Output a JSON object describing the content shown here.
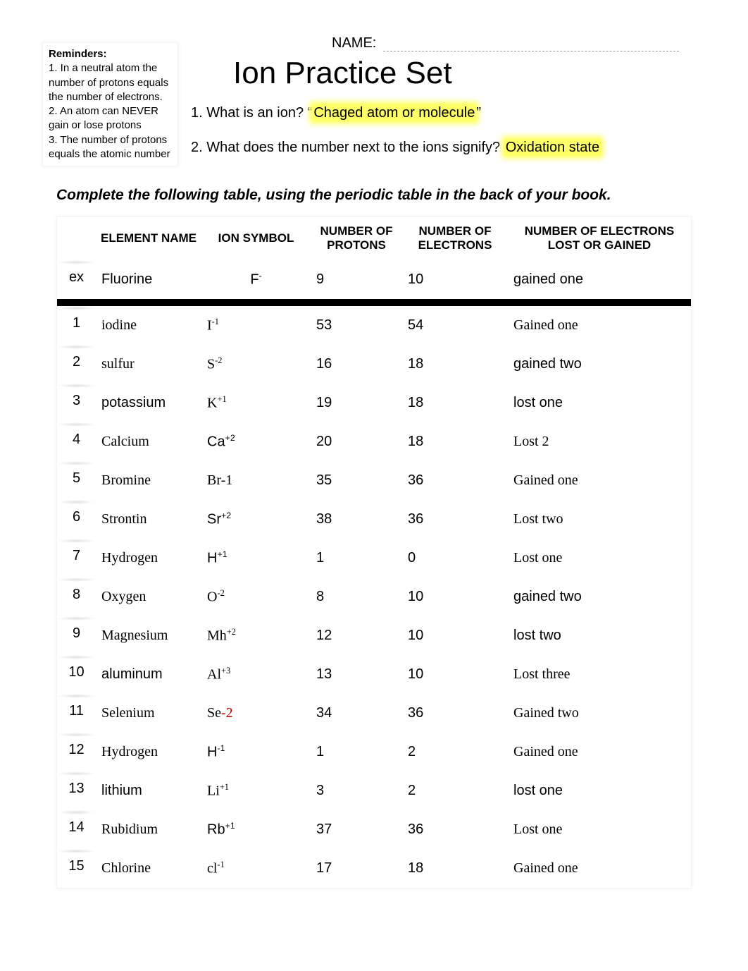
{
  "reminders": {
    "heading": "Reminders:",
    "r1": "1. In a neutral atom the number of protons equals the number of electrons.",
    "r2": "2. An atom can NEVER gain or lose protons",
    "r3": "3. The number of protons equals the atomic number"
  },
  "header": {
    "name_label": "NAME:",
    "title": "Ion Practice Set",
    "q1_label": "1.  What is an ion? ",
    "q1_quote_open": "“",
    "q1_answer": "Chaged atom or molecule",
    "q1_quote_close": "”",
    "q2_label": "2.  What does the number next to the ions signify? ",
    "q2_answer": "Oxidation state",
    "instruction": "Complete the following table, using the periodic table in the back of your book."
  },
  "columns": {
    "c0": "",
    "c1": "ELEMENT NAME",
    "c2": "ION SYMBOL",
    "c3": "NUMBER OF PROTONS",
    "c4": "NUMBER OF ELECTRONS",
    "c5": "NUMBER OF ELECTRONS LOST OR GAINED"
  },
  "rows": [
    {
      "idx": "ex",
      "name": "Fluorine",
      "name_font": "sans",
      "sym": "F",
      "sup": "-",
      "sym_font": "sans",
      "sym_shift": "center",
      "prot": "9",
      "prot_pos": "num-ctr",
      "elec": "10",
      "elec_pos": "num-ctr",
      "gain": "gained one",
      "gain_font": "sans",
      "gain_pos": "gain-ctr"
    },
    {
      "idx": "1",
      "name": "iodine",
      "name_font": "serif",
      "sym": "I",
      "sup": "-1",
      "sym_font": "serif",
      "sym_shift": "shift-left",
      "prot": "53",
      "prot_pos": "num-ctr",
      "elec": "54",
      "elec_pos": "num-ctr",
      "gain": "Gained one",
      "gain_font": "serif",
      "gain_pos": "gain-left"
    },
    {
      "idx": "2",
      "name": "sulfur",
      "name_font": "serif",
      "sym": "S",
      "sup": "-2",
      "sym_font": "serif",
      "sym_shift": "shift-left",
      "prot": "16",
      "prot_pos": "num-ctr",
      "elec": "18",
      "elec_pos": "num-left",
      "gain": "gained two",
      "gain_font": "sans",
      "gain_pos": "gain-ctr"
    },
    {
      "idx": "3",
      "name": "potassium",
      "name_font": "sans",
      "sym": "K",
      "sup": "+1",
      "sym_font": "serif",
      "sym_shift": "shift-left",
      "prot": "19",
      "prot_pos": "num-left",
      "elec": "18",
      "elec_pos": "num-left",
      "gain": "lost one",
      "gain_font": "sans",
      "gain_pos": "gain-ctr"
    },
    {
      "idx": "4",
      "name": "Calcium",
      "name_font": "serif",
      "sym": "Ca",
      "sup": "+2",
      "sym_font": "sans",
      "sym_shift": "shift-right",
      "prot": "20",
      "prot_pos": "num-left",
      "elec": "18",
      "elec_pos": "num-left",
      "gain": "Lost 2",
      "gain_font": "serif",
      "gain_pos": "gain-left"
    },
    {
      "idx": "5",
      "name": "Bromine",
      "name_font": "serif",
      "sym": "Br-1",
      "sup": "",
      "sym_font": "serif",
      "sym_shift": "shift-left",
      "prot": "35",
      "prot_pos": "num-ctr",
      "elec": "36",
      "elec_pos": "num-ctr",
      "gain": "Gained one",
      "gain_font": "serif",
      "gain_pos": "gain-left"
    },
    {
      "idx": "6",
      "name": "Strontin",
      "name_font": "serif",
      "sym": "Sr",
      "sup": "+2",
      "sym_font": "sans",
      "sym_shift": "shift-right",
      "prot": "38",
      "prot_pos": "num-left",
      "elec": "36",
      "elec_pos": "num-left",
      "gain": "Lost two",
      "gain_font": "serif",
      "gain_pos": "gain-left"
    },
    {
      "idx": "7",
      "name": "Hydrogen",
      "name_font": "serif",
      "sym": "H",
      "sup": "+1",
      "sym_font": "sans",
      "sym_shift": "shift-right",
      "prot": "1",
      "prot_pos": "num-left",
      "elec": "0",
      "elec_pos": "num-left",
      "gain": "Lost one",
      "gain_font": "serif",
      "gain_pos": "gain-left"
    },
    {
      "idx": "8",
      "name": "Oxygen",
      "name_font": "serif",
      "sym": "O",
      "sup": "-2",
      "sym_font": "serif",
      "sym_shift": "shift-left",
      "prot": "8",
      "prot_pos": "num-ctr",
      "elec": "10",
      "elec_pos": "num-left",
      "gain": "gained two",
      "gain_font": "sans",
      "gain_pos": "gain-ctr"
    },
    {
      "idx": "9",
      "name": "Magnesium",
      "name_font": "serif",
      "sym": "Mh",
      "sup": "+2",
      "sym_font": "serif",
      "sym_shift": "shift-left",
      "prot": "12",
      "prot_pos": "num-ctr",
      "elec": "10",
      "elec_pos": "num-left",
      "gain": "lost two",
      "gain_font": "sans",
      "gain_pos": "gain-ctr"
    },
    {
      "idx": "10",
      "name": "aluminum",
      "name_font": "sans",
      "sym": "Al",
      "sup": "+3",
      "sym_font": "serif",
      "sym_shift": "shift-left",
      "prot": "13",
      "prot_pos": "num-left",
      "elec": "10",
      "elec_pos": "num-ctr",
      "gain": "Lost three",
      "gain_font": "serif",
      "gain_pos": "gain-left"
    },
    {
      "idx": "11",
      "name": "Selenium",
      "name_font": "serif",
      "sym": "Se",
      "sym2": "-2",
      "sup": "",
      "sym_font": "serif",
      "sym_shift": "shift-left",
      "prot": "34",
      "prot_pos": "num-ctr",
      "elec": "36",
      "elec_pos": "num-ctr",
      "gain": "Gained two",
      "gain_font": "serif",
      "gain_pos": "gain-right"
    },
    {
      "idx": "12",
      "name": "Hydrogen",
      "name_font": "serif",
      "sym": "H",
      "sup": "-1",
      "sym_font": "sans",
      "sym_shift": "shift-right",
      "prot": "1",
      "prot_pos": "num-left",
      "elec": "2",
      "elec_pos": "num-left",
      "gain": "Gained one",
      "gain_font": "serif",
      "gain_pos": "gain-left"
    },
    {
      "idx": "13",
      "name": "lithium",
      "name_font": "sans",
      "sym": "Li",
      "sup": "+1",
      "sym_font": "serif",
      "sym_shift": "shift-left",
      "prot": "3",
      "prot_pos": "num-left",
      "elec": "2",
      "elec_pos": "num-left",
      "gain": "lost one",
      "gain_font": "sans",
      "gain_pos": "gain-ctr"
    },
    {
      "idx": "14",
      "name": "Rubidium",
      "name_font": "serif",
      "sym": "Rb",
      "sup": "+1",
      "sym_font": "sans",
      "sym_shift": "shift-right",
      "prot": "37",
      "prot_pos": "num-left",
      "elec": "36",
      "elec_pos": "num-left",
      "gain": "Lost one",
      "gain_font": "serif",
      "gain_pos": "gain-left"
    },
    {
      "idx": "15",
      "name": "Chlorine",
      "name_font": "serif",
      "sym": "cl",
      "sup": "-1",
      "sym_font": "serif",
      "sym_shift": "shift-left",
      "prot": "17",
      "prot_pos": "num-ctr",
      "elec": "18",
      "elec_pos": "num-ctr",
      "gain": "Gained one",
      "gain_font": "serif",
      "gain_pos": "gain-left"
    }
  ]
}
